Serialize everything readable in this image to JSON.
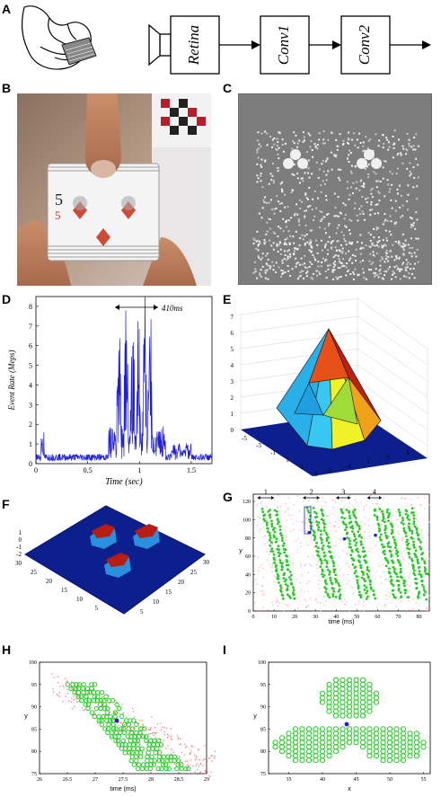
{
  "panels": {
    "A": "A",
    "B": "B",
    "C": "C",
    "D": "D",
    "E": "E",
    "F": "F",
    "G": "G",
    "H": "H",
    "I": "I"
  },
  "pipeline": {
    "blocks": [
      "Retina",
      "Conv1",
      "Conv2"
    ]
  },
  "photo_card": {
    "rank": "5"
  },
  "panel_D": {
    "xlabel": "Time (sec)",
    "ylabel": "Event Rate (Meps)",
    "annotation": "410ms",
    "xticks": [
      "0",
      "0.5",
      "1",
      "1.5"
    ],
    "yticks": [
      "0",
      "1",
      "2",
      "3",
      "4",
      "5",
      "6",
      "7",
      "8"
    ]
  },
  "panel_E": {
    "zticks": [
      "0",
      "1",
      "2",
      "3",
      "4",
      "5",
      "6",
      "7"
    ],
    "xticks": [
      "-5",
      "-3",
      "-1",
      "1",
      "3",
      "5"
    ],
    "yticks": [
      "-3",
      "-1",
      "1",
      "3",
      "5"
    ]
  },
  "panel_F": {
    "left_ticks": [
      "30",
      "25",
      "20",
      "15",
      "10",
      "5"
    ],
    "right_ticks": [
      "5",
      "10",
      "15",
      "20",
      "25",
      "30"
    ],
    "zticks": [
      "1",
      "0",
      "-1",
      "-2"
    ]
  },
  "panel_G": {
    "markers": [
      "1",
      "2",
      "3",
      "4"
    ],
    "xlabel": "time (ms)",
    "ylabel": "y",
    "xticks": [
      "0",
      "10",
      "20",
      "30",
      "40",
      "50",
      "60",
      "70",
      "80"
    ],
    "yticks": [
      "0",
      "20",
      "40",
      "60",
      "80",
      "100",
      "120"
    ]
  },
  "panel_H": {
    "xlabel": "time (ms)",
    "ylabel": "y",
    "xticks": [
      "26",
      "26.5",
      "27",
      "27.5",
      "28",
      "28.5",
      "29"
    ],
    "yticks": [
      "75",
      "80",
      "85",
      "90",
      "95",
      "100"
    ]
  },
  "panel_I": {
    "xlabel": "x",
    "ylabel": "y",
    "xticks": [
      "35",
      "40",
      "45",
      "50",
      "55"
    ],
    "yticks": [
      "75",
      "80",
      "85",
      "90",
      "95",
      "100"
    ]
  },
  "colors": {
    "event_blue": "#1f1fd8",
    "neuron_green": "#22cc22",
    "surface_navy": "#0d1f8c",
    "event_red": "#ff6666"
  }
}
